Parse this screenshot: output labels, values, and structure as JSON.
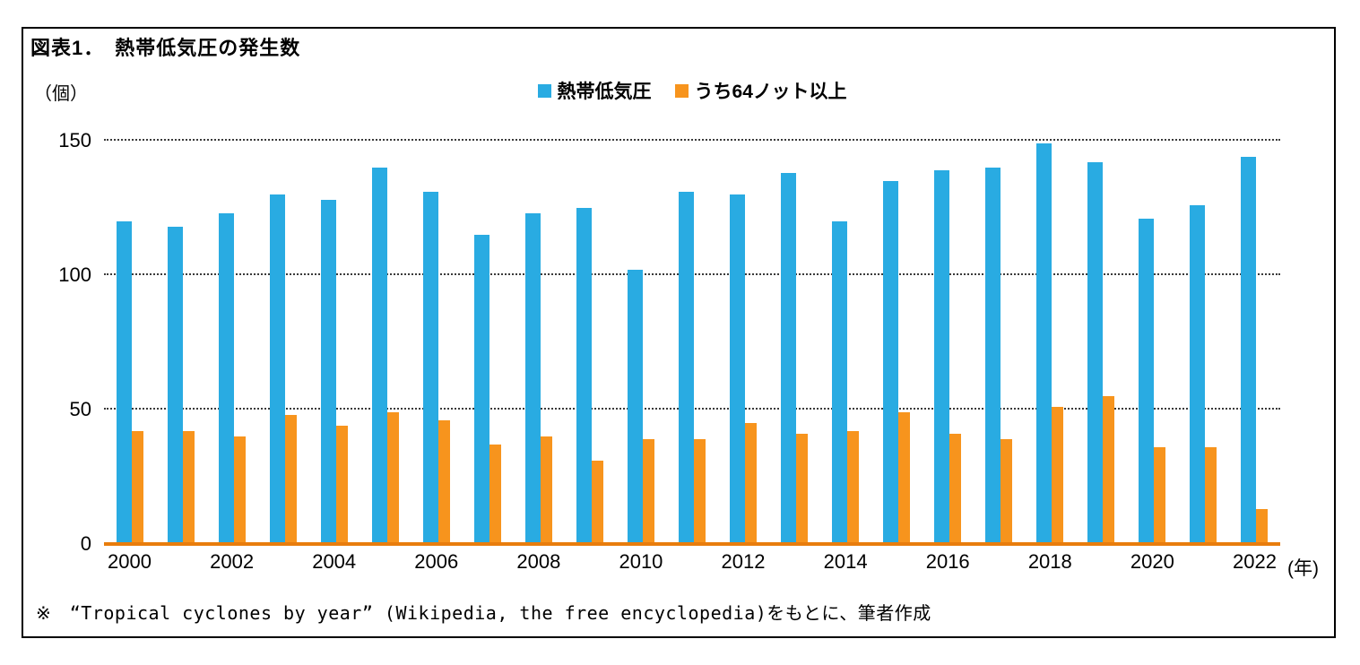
{
  "title": "図表1．　熱帯低気圧の発生数",
  "y_unit_label": "（個）",
  "x_unit_label": "(年)",
  "footnote": "※　“Tropical cyclones by year” (Wikipedia, the free encyclopedia)をもとに、筆者作成",
  "legend": [
    {
      "label": "熱帯低気圧",
      "color": "#29ABE2"
    },
    {
      "label": "うち64ノット以上",
      "color": "#F7941D"
    }
  ],
  "chart_data": {
    "type": "bar",
    "title": "図表1．　熱帯低気圧の発生数",
    "xlabel": "年",
    "ylabel": "個",
    "ylim": [
      0,
      150
    ],
    "yticks": [
      0,
      50,
      100,
      150
    ],
    "grid": "horizontal-dotted",
    "legend_position": "top-center",
    "categories": [
      2000,
      2001,
      2002,
      2003,
      2004,
      2005,
      2006,
      2007,
      2008,
      2009,
      2010,
      2011,
      2012,
      2013,
      2014,
      2015,
      2016,
      2017,
      2018,
      2019,
      2020,
      2021,
      2022
    ],
    "x_tick_labels": [
      "2000",
      "2002",
      "2004",
      "2006",
      "2008",
      "2010",
      "2012",
      "2014",
      "2016",
      "2018",
      "2020",
      "2022"
    ],
    "series": [
      {
        "name": "熱帯低気圧",
        "key": "tropical-cyclones",
        "color": "#29ABE2",
        "values": [
          120,
          118,
          123,
          130,
          128,
          140,
          131,
          115,
          123,
          125,
          102,
          131,
          130,
          138,
          120,
          135,
          139,
          140,
          149,
          142,
          121,
          126,
          144
        ]
      },
      {
        "name": "うち64ノット以上",
        "key": "64knots-or-more",
        "color": "#F7941D",
        "values": [
          42,
          42,
          40,
          48,
          44,
          49,
          46,
          37,
          40,
          31,
          39,
          39,
          45,
          41,
          42,
          49,
          41,
          39,
          51,
          55,
          36,
          36,
          13
        ]
      }
    ]
  }
}
